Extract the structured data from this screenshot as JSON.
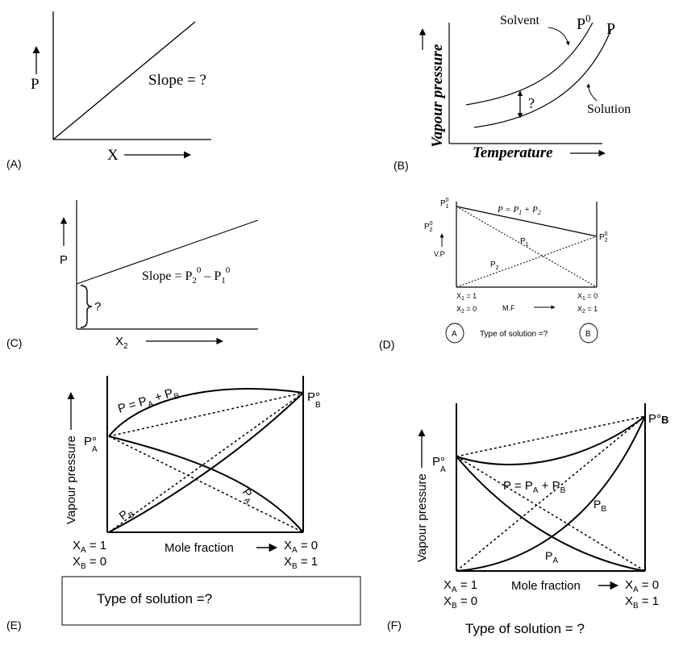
{
  "panel_labels": [
    "(A)",
    "(B)",
    "(C)",
    "(D)",
    "(E)",
    "(F)"
  ],
  "panel_a": {
    "y_label": "P",
    "x_label": "X",
    "slope_text": "Slope = ?"
  },
  "panel_b": {
    "y_label": "Vapour pressure",
    "x_label": "Temperature",
    "solvent_label": "Solvent",
    "p0_label": "P",
    "p0_sup": "0",
    "p_label": "P",
    "solution_label": "Solution",
    "question": "?"
  },
  "panel_c": {
    "y_label": "P",
    "x_label": "X",
    "x_sub": "2",
    "slope_prefix": "Slope = P",
    "slope_sub1": "2",
    "slope_sup1": "0",
    "slope_mid": " – P",
    "slope_sub2": "1",
    "slope_sup2": "0",
    "question": "?"
  },
  "panel_d": {
    "p1_0": "P",
    "p1_0_sub": "1",
    "p1_0_sup": "0",
    "p2_0": "P",
    "p2_0_sub": "2",
    "p2_0_sup": "0",
    "p2_0_right": "P",
    "p2_0_right_sub": "2",
    "p2_0_right_sup": "0",
    "vp_label": "V.P",
    "total_eq": "P = P",
    "total_sub1": "1",
    "total_plus": " + P",
    "total_sub2": "2",
    "p1_curve": "P",
    "p1_curve_sub": "1",
    "p2_curve": "P",
    "p2_curve_sub": "2",
    "x1_left": "X",
    "x1_left_sub": "1",
    "x1_left_val": " = 1",
    "x2_left": "X",
    "x2_left_sub": "2",
    "x2_left_val": " = 0",
    "x1_right": "X",
    "x1_right_sub": "1",
    "x1_right_val": " = 0",
    "x2_right": "X",
    "x2_right_sub": "2",
    "x2_right_val": " = 1",
    "mf_label": "M.F",
    "circle_a": "A",
    "circle_b": "B",
    "type_text": "Type of solution =?"
  },
  "panel_e": {
    "y_label": "Vapour pressure",
    "pa0": "P°",
    "pa0_sub": "A",
    "pb0": "P°",
    "pb0_sub": "B",
    "total_eq": "P = P",
    "total_sub1": "A",
    "total_plus": " + P",
    "total_sub2": "B",
    "pa_curve": "P",
    "pa_curve_sub": "A",
    "pb_curve": "P",
    "pb_curve_sub": "B",
    "xa_left": "X",
    "xa_left_sub": "A",
    "xa_left_val": " = 1",
    "xb_left": "X",
    "xb_left_sub": "B",
    "xb_left_val": " = 0",
    "xa_right": "X",
    "xa_right_sub": "A",
    "xa_right_val": " = 0",
    "xb_right": "X",
    "xb_right_sub": "B",
    "xb_right_val": " = 1",
    "mf_label": "Mole fraction",
    "type_text": "Type of solution =?"
  },
  "panel_f": {
    "y_label": "Vapour pressure",
    "pa0": "P°",
    "pa0_sub": "A",
    "pb0": "P°",
    "pb0_sub": "B",
    "total_eq": "P = P",
    "total_sub1": "A",
    "total_plus": " + P",
    "total_sub2": "B",
    "pa_curve": "P",
    "pa_curve_sub": "A",
    "pb_curve": "P",
    "pb_curve_sub": "B",
    "xa_left": "X",
    "xa_left_sub": "A",
    "xa_left_val": " = 1",
    "xb_left": "X",
    "xb_left_sub": "B",
    "xb_left_val": " = 0",
    "xa_right": "X",
    "xa_right_sub": "A",
    "xa_right_val": " = 0",
    "xb_right": "X",
    "xb_right_sub": "B",
    "xb_right_val": " = 1",
    "mf_label": "Mole fraction",
    "type_text": "Type of solution = ?"
  }
}
